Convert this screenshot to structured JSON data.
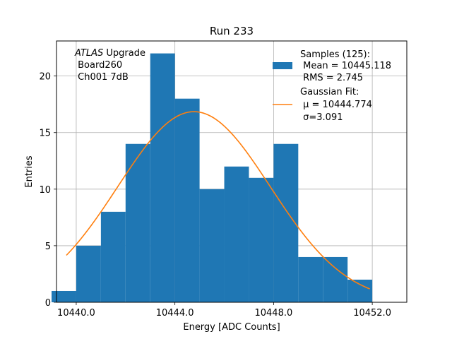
{
  "chart_data": {
    "type": "bar",
    "title": "Run 233",
    "xlabel": "Energy [ADC Counts]",
    "ylabel": "Entries",
    "xlim": [
      10439.2,
      10453.4
    ],
    "ylim": [
      0,
      23.1
    ],
    "xticks": [
      10440,
      10444,
      10448,
      10452
    ],
    "xtick_labels": [
      "10440.0",
      "10444.0",
      "10448.0",
      "10452.0"
    ],
    "yticks": [
      0,
      5,
      10,
      15,
      20
    ],
    "ytick_labels": [
      "0",
      "5",
      "10",
      "15",
      "20"
    ],
    "grid": true,
    "bin_edges": [
      10439,
      10440,
      10441,
      10442,
      10443,
      10444,
      10445,
      10446,
      10447,
      10448,
      10449,
      10450,
      10451,
      10452
    ],
    "values": [
      1,
      5,
      8,
      14,
      22,
      18,
      10,
      12,
      11,
      14,
      4,
      4,
      2
    ],
    "bar_color": "#1f77b4",
    "fit": {
      "type": "gaussian",
      "mu": 10444.774,
      "sigma": 3.091,
      "x_range": [
        10439.6,
        10451.9
      ],
      "peak": 16.85,
      "color": "#ff7f0e"
    },
    "annotation": {
      "italic": "ATLAS",
      "line1_rest": " Upgrade",
      "line2": " Board260",
      "line3": " Ch001 7dB"
    },
    "legend": {
      "position": "top-right",
      "samples": {
        "line1": "Samples (125):",
        "line2": " Mean = 10445.118",
        "line3": " RMS = 2.745"
      },
      "fit": {
        "line1": "Gaussian Fit:",
        "line2": " μ = 10444.774",
        "line3": " σ=3.091"
      }
    }
  }
}
